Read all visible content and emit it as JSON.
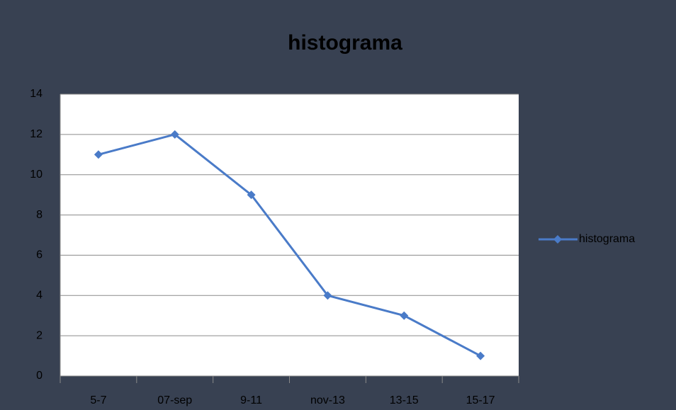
{
  "chart_data": {
    "type": "line",
    "title": "histograma",
    "categories": [
      "5-7",
      "07-sep",
      "9-11",
      "nov-13",
      "13-15",
      "15-17"
    ],
    "series": [
      {
        "name": "histograma",
        "color": "#4a7bc8",
        "values": [
          11,
          12,
          9,
          4,
          3,
          1
        ]
      }
    ],
    "ylim": [
      0,
      14
    ],
    "yticks": [
      0,
      2,
      4,
      6,
      8,
      10,
      12,
      14
    ],
    "grid": true,
    "legend": "right"
  }
}
